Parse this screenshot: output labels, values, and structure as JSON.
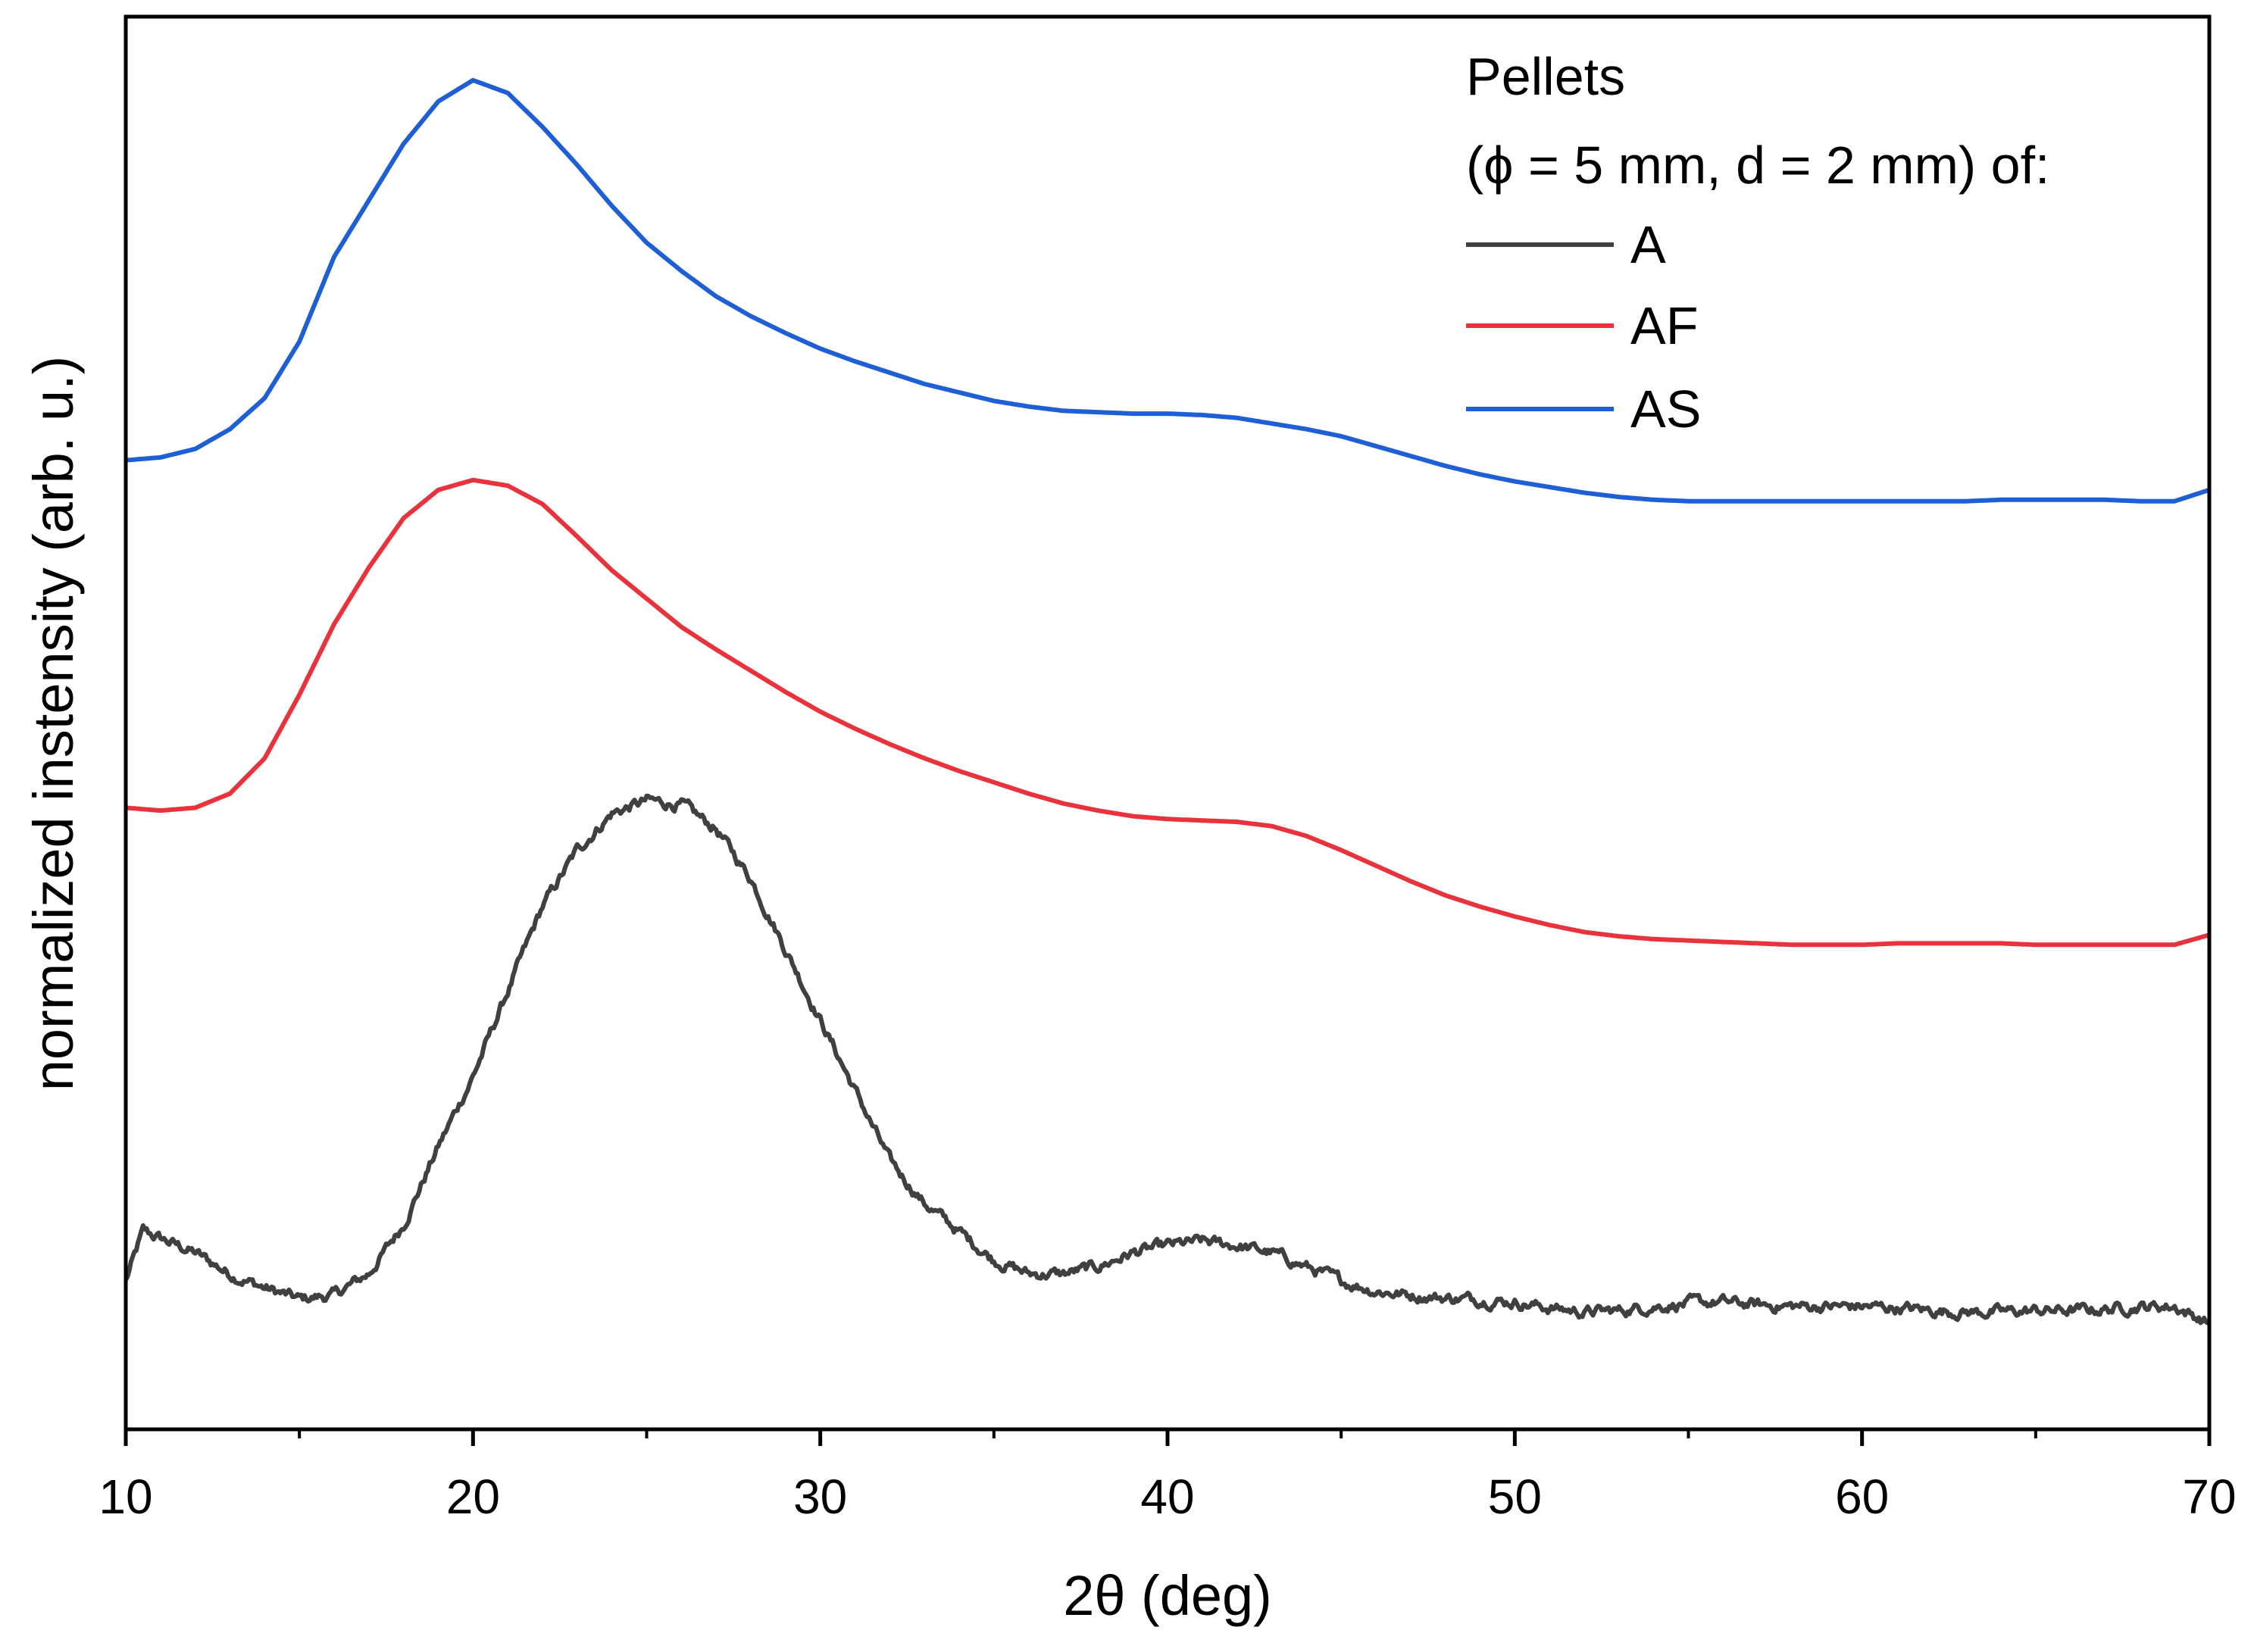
{
  "chart_data": {
    "type": "line",
    "xlabel": "2θ (deg)",
    "ylabel": "normalized instensity (arb. u.)",
    "xlim": [
      10,
      70
    ],
    "ylim": [
      0,
      1
    ],
    "x_ticks": [
      10,
      20,
      30,
      40,
      50,
      60,
      70
    ],
    "x_tick_labels": [
      "10",
      "20",
      "30",
      "40",
      "50",
      "60",
      "70"
    ],
    "y_ticks_shown": false,
    "grid": false,
    "legend": {
      "placement": "top-right",
      "title_lines": [
        "Pellets",
        "(ϕ = 5 mm, d = 2 mm) of:"
      ],
      "entries": [
        "A",
        "AF",
        "AS"
      ]
    },
    "series": [
      {
        "name": "A",
        "color": "#404040",
        "noisy": true,
        "x": [
          10,
          10.5,
          11,
          12,
          13,
          14,
          15,
          16,
          17,
          18,
          19,
          20,
          21,
          22,
          23,
          24,
          25,
          26,
          27,
          28,
          29,
          30,
          31,
          32,
          33,
          34,
          35,
          36,
          37,
          38,
          39,
          40,
          41,
          42,
          43,
          44,
          45,
          46,
          47,
          48,
          49,
          50,
          51,
          52,
          53,
          54,
          55,
          56,
          57,
          58,
          59,
          60,
          61,
          62,
          63,
          64,
          65,
          66,
          67,
          68,
          69,
          70
        ],
        "y": [
          0.105,
          0.14,
          0.135,
          0.125,
          0.11,
          0.1,
          0.092,
          0.095,
          0.11,
          0.145,
          0.2,
          0.25,
          0.31,
          0.37,
          0.41,
          0.436,
          0.445,
          0.442,
          0.425,
          0.39,
          0.34,
          0.29,
          0.24,
          0.19,
          0.16,
          0.14,
          0.12,
          0.11,
          0.11,
          0.115,
          0.125,
          0.13,
          0.133,
          0.13,
          0.125,
          0.115,
          0.105,
          0.098,
          0.095,
          0.093,
          0.092,
          0.09,
          0.086,
          0.083,
          0.084,
          0.087,
          0.089,
          0.09,
          0.088,
          0.087,
          0.087,
          0.087,
          0.086,
          0.084,
          0.083,
          0.083,
          0.084,
          0.084,
          0.085,
          0.087,
          0.087,
          0.075
        ]
      },
      {
        "name": "AF",
        "color": "#e8333c",
        "noisy": false,
        "x": [
          10,
          11,
          12,
          13,
          14,
          15,
          16,
          17,
          18,
          19,
          20,
          21,
          22,
          23,
          24,
          25,
          26,
          27,
          28,
          29,
          30,
          31,
          32,
          33,
          34,
          35,
          36,
          37,
          38,
          39,
          40,
          41,
          42,
          43,
          44,
          45,
          46,
          47,
          48,
          49,
          50,
          51,
          52,
          53,
          54,
          55,
          56,
          57,
          58,
          59,
          60,
          61,
          62,
          63,
          64,
          65,
          66,
          67,
          68,
          69,
          70
        ],
        "y": [
          0.44,
          0.438,
          0.44,
          0.45,
          0.475,
          0.52,
          0.57,
          0.61,
          0.645,
          0.665,
          0.672,
          0.668,
          0.655,
          0.632,
          0.608,
          0.588,
          0.568,
          0.552,
          0.537,
          0.522,
          0.508,
          0.496,
          0.485,
          0.475,
          0.466,
          0.458,
          0.45,
          0.443,
          0.438,
          0.434,
          0.432,
          0.431,
          0.43,
          0.427,
          0.42,
          0.41,
          0.399,
          0.388,
          0.378,
          0.37,
          0.363,
          0.357,
          0.352,
          0.349,
          0.347,
          0.346,
          0.345,
          0.344,
          0.343,
          0.343,
          0.343,
          0.344,
          0.344,
          0.344,
          0.344,
          0.343,
          0.343,
          0.343,
          0.343,
          0.343,
          0.35
        ]
      },
      {
        "name": "AS",
        "color": "#1f5fd6",
        "noisy": false,
        "x": [
          10,
          11,
          12,
          13,
          14,
          15,
          16,
          17,
          18,
          19,
          20,
          21,
          22,
          23,
          24,
          25,
          26,
          27,
          28,
          29,
          30,
          31,
          32,
          33,
          34,
          35,
          36,
          37,
          38,
          39,
          40,
          41,
          42,
          43,
          44,
          45,
          46,
          47,
          48,
          49,
          50,
          51,
          52,
          53,
          54,
          55,
          56,
          57,
          58,
          59,
          60,
          61,
          62,
          63,
          64,
          65,
          66,
          67,
          68,
          69,
          70
        ],
        "y": [
          0.686,
          0.688,
          0.694,
          0.708,
          0.73,
          0.77,
          0.83,
          0.87,
          0.91,
          0.94,
          0.955,
          0.946,
          0.922,
          0.895,
          0.866,
          0.84,
          0.82,
          0.802,
          0.788,
          0.776,
          0.765,
          0.756,
          0.748,
          0.74,
          0.734,
          0.728,
          0.724,
          0.721,
          0.72,
          0.719,
          0.719,
          0.718,
          0.716,
          0.712,
          0.708,
          0.703,
          0.696,
          0.689,
          0.682,
          0.676,
          0.671,
          0.667,
          0.663,
          0.66,
          0.658,
          0.657,
          0.657,
          0.657,
          0.657,
          0.657,
          0.657,
          0.657,
          0.657,
          0.657,
          0.658,
          0.658,
          0.658,
          0.658,
          0.657,
          0.657,
          0.665
        ]
      }
    ]
  }
}
